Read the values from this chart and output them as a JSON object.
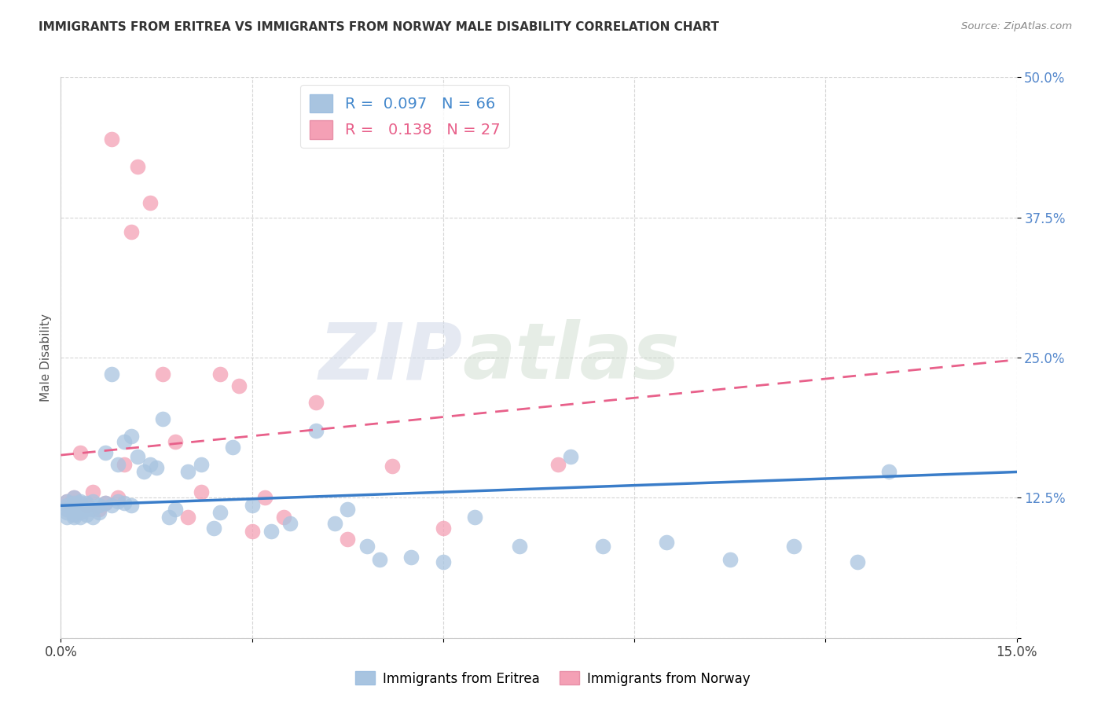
{
  "title": "IMMIGRANTS FROM ERITREA VS IMMIGRANTS FROM NORWAY MALE DISABILITY CORRELATION CHART",
  "source": "Source: ZipAtlas.com",
  "ylabel": "Male Disability",
  "xlim": [
    0.0,
    0.15
  ],
  "ylim": [
    0.0,
    0.5
  ],
  "xticks": [
    0.0,
    0.03,
    0.06,
    0.09,
    0.12,
    0.15
  ],
  "yticks": [
    0.0,
    0.125,
    0.25,
    0.375,
    0.5
  ],
  "xtick_labels": [
    "0.0%",
    "",
    "",
    "",
    "",
    "15.0%"
  ],
  "ytick_labels": [
    "",
    "12.5%",
    "25.0%",
    "37.5%",
    "50.0%"
  ],
  "series1_color": "#a8c4e0",
  "series2_color": "#f4a0b5",
  "line1_color": "#3a7dc9",
  "line2_color": "#e8608a",
  "legend_R1": "0.097",
  "legend_N1": "66",
  "legend_R2": "0.138",
  "legend_N2": "27",
  "legend_label1": "Immigrants from Eritrea",
  "legend_label2": "Immigrants from Norway",
  "watermark1": "ZIP",
  "watermark2": "atlas",
  "eritrea_x": [
    0.001,
    0.001,
    0.001,
    0.001,
    0.001,
    0.002,
    0.002,
    0.002,
    0.002,
    0.002,
    0.002,
    0.003,
    0.003,
    0.003,
    0.003,
    0.003,
    0.003,
    0.004,
    0.004,
    0.004,
    0.005,
    0.005,
    0.005,
    0.006,
    0.006,
    0.007,
    0.007,
    0.008,
    0.008,
    0.009,
    0.009,
    0.01,
    0.01,
    0.011,
    0.011,
    0.012,
    0.013,
    0.014,
    0.015,
    0.016,
    0.017,
    0.018,
    0.02,
    0.022,
    0.024,
    0.025,
    0.027,
    0.03,
    0.033,
    0.036,
    0.04,
    0.043,
    0.045,
    0.048,
    0.05,
    0.055,
    0.06,
    0.065,
    0.072,
    0.08,
    0.085,
    0.095,
    0.105,
    0.115,
    0.125,
    0.13
  ],
  "eritrea_y": [
    0.118,
    0.122,
    0.112,
    0.108,
    0.115,
    0.125,
    0.118,
    0.11,
    0.12,
    0.108,
    0.115,
    0.122,
    0.112,
    0.118,
    0.108,
    0.115,
    0.12,
    0.115,
    0.11,
    0.12,
    0.115,
    0.108,
    0.122,
    0.118,
    0.112,
    0.165,
    0.12,
    0.235,
    0.118,
    0.155,
    0.122,
    0.175,
    0.12,
    0.18,
    0.118,
    0.162,
    0.148,
    0.155,
    0.152,
    0.195,
    0.108,
    0.115,
    0.148,
    0.155,
    0.098,
    0.112,
    0.17,
    0.118,
    0.095,
    0.102,
    0.185,
    0.102,
    0.115,
    0.082,
    0.07,
    0.072,
    0.068,
    0.108,
    0.082,
    0.162,
    0.082,
    0.085,
    0.07,
    0.082,
    0.068,
    0.148
  ],
  "norway_x": [
    0.001,
    0.002,
    0.003,
    0.004,
    0.005,
    0.006,
    0.007,
    0.008,
    0.009,
    0.01,
    0.011,
    0.012,
    0.014,
    0.016,
    0.018,
    0.02,
    0.022,
    0.025,
    0.028,
    0.03,
    0.032,
    0.035,
    0.04,
    0.045,
    0.052,
    0.06,
    0.078
  ],
  "norway_y": [
    0.122,
    0.125,
    0.165,
    0.118,
    0.13,
    0.115,
    0.12,
    0.445,
    0.125,
    0.155,
    0.362,
    0.42,
    0.388,
    0.235,
    0.175,
    0.108,
    0.13,
    0.235,
    0.225,
    0.095,
    0.125,
    0.108,
    0.21,
    0.088,
    0.153,
    0.098,
    0.155
  ],
  "line1_x0": 0.0,
  "line1_x1": 0.15,
  "line1_y0": 0.118,
  "line1_y1": 0.148,
  "line2_x0": 0.0,
  "line2_x1": 0.15,
  "line2_y0": 0.163,
  "line2_y1": 0.248
}
